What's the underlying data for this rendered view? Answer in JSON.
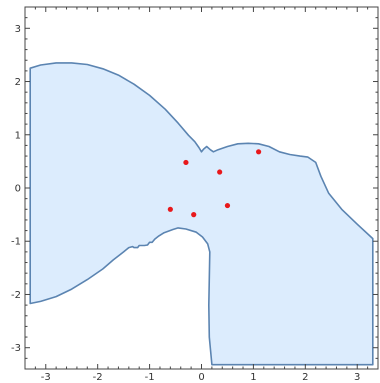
{
  "chart_data": {
    "type": "scatter",
    "title": "",
    "xlabel": "",
    "ylabel": "",
    "xlim": [
      -3.4,
      3.4
    ],
    "ylim": [
      -3.4,
      3.4
    ],
    "grid": false,
    "x_major_ticks": [
      -3,
      -2,
      -1,
      0,
      1,
      2,
      3
    ],
    "y_major_ticks": [
      -3,
      -2,
      -1,
      0,
      1,
      2,
      3
    ],
    "x_tick_labels": [
      "-3",
      "-2",
      "-1",
      "0",
      "1",
      "2",
      "3"
    ],
    "y_tick_labels": [
      "-3",
      "-2",
      "-1",
      "0",
      "1",
      "2",
      "3"
    ],
    "colors": {
      "region_fill": "#dcecfd",
      "region_edge": "#5b84b1",
      "points": "#e8181b"
    },
    "region_boundary": [
      [
        -3.3,
        2.25
      ],
      [
        -3.1,
        2.31
      ],
      [
        -2.8,
        2.35
      ],
      [
        -2.5,
        2.35
      ],
      [
        -2.2,
        2.32
      ],
      [
        -1.9,
        2.24
      ],
      [
        -1.6,
        2.12
      ],
      [
        -1.3,
        1.95
      ],
      [
        -1.0,
        1.74
      ],
      [
        -0.7,
        1.48
      ],
      [
        -0.45,
        1.22
      ],
      [
        -0.25,
        0.99
      ],
      [
        -0.13,
        0.87
      ],
      [
        -0.05,
        0.76
      ],
      [
        0.0,
        0.68
      ],
      [
        0.04,
        0.73
      ],
      [
        0.1,
        0.78
      ],
      [
        0.17,
        0.72
      ],
      [
        0.23,
        0.68
      ],
      [
        0.32,
        0.72
      ],
      [
        0.5,
        0.78
      ],
      [
        0.7,
        0.83
      ],
      [
        0.9,
        0.84
      ],
      [
        1.1,
        0.83
      ],
      [
        1.3,
        0.78
      ],
      [
        1.5,
        0.68
      ],
      [
        1.7,
        0.63
      ],
      [
        1.9,
        0.6
      ],
      [
        2.05,
        0.58
      ],
      [
        2.2,
        0.48
      ],
      [
        2.3,
        0.22
      ],
      [
        2.45,
        -0.1
      ],
      [
        2.7,
        -0.4
      ],
      [
        3.0,
        -0.68
      ],
      [
        3.3,
        -0.95
      ],
      [
        3.3,
        -3.32
      ],
      [
        0.2,
        -3.32
      ],
      [
        0.15,
        -2.8
      ],
      [
        0.14,
        -2.2
      ],
      [
        0.15,
        -1.7
      ],
      [
        0.16,
        -1.2
      ],
      [
        0.12,
        -1.05
      ],
      [
        0.02,
        -0.92
      ],
      [
        -0.1,
        -0.83
      ],
      [
        -0.3,
        -0.77
      ],
      [
        -0.45,
        -0.75
      ],
      [
        -0.55,
        -0.78
      ],
      [
        -0.72,
        -0.84
      ],
      [
        -0.82,
        -0.9
      ],
      [
        -0.9,
        -0.96
      ],
      [
        -0.95,
        -1.02
      ],
      [
        -1.0,
        -1.02
      ],
      [
        -1.04,
        -1.07
      ],
      [
        -1.1,
        -1.08
      ],
      [
        -1.2,
        -1.08
      ],
      [
        -1.23,
        -1.12
      ],
      [
        -1.3,
        -1.12
      ],
      [
        -1.33,
        -1.1
      ],
      [
        -1.4,
        -1.12
      ],
      [
        -1.5,
        -1.2
      ],
      [
        -1.7,
        -1.35
      ],
      [
        -1.9,
        -1.52
      ],
      [
        -2.2,
        -1.72
      ],
      [
        -2.5,
        -1.9
      ],
      [
        -2.8,
        -2.04
      ],
      [
        -3.1,
        -2.13
      ],
      [
        -3.3,
        -2.17
      ]
    ],
    "points": [
      {
        "x": -0.3,
        "y": 0.48
      },
      {
        "x": 0.35,
        "y": 0.3
      },
      {
        "x": 1.1,
        "y": 0.68
      },
      {
        "x": -0.6,
        "y": -0.4
      },
      {
        "x": -0.15,
        "y": -0.5
      },
      {
        "x": 0.5,
        "y": -0.33
      }
    ]
  }
}
